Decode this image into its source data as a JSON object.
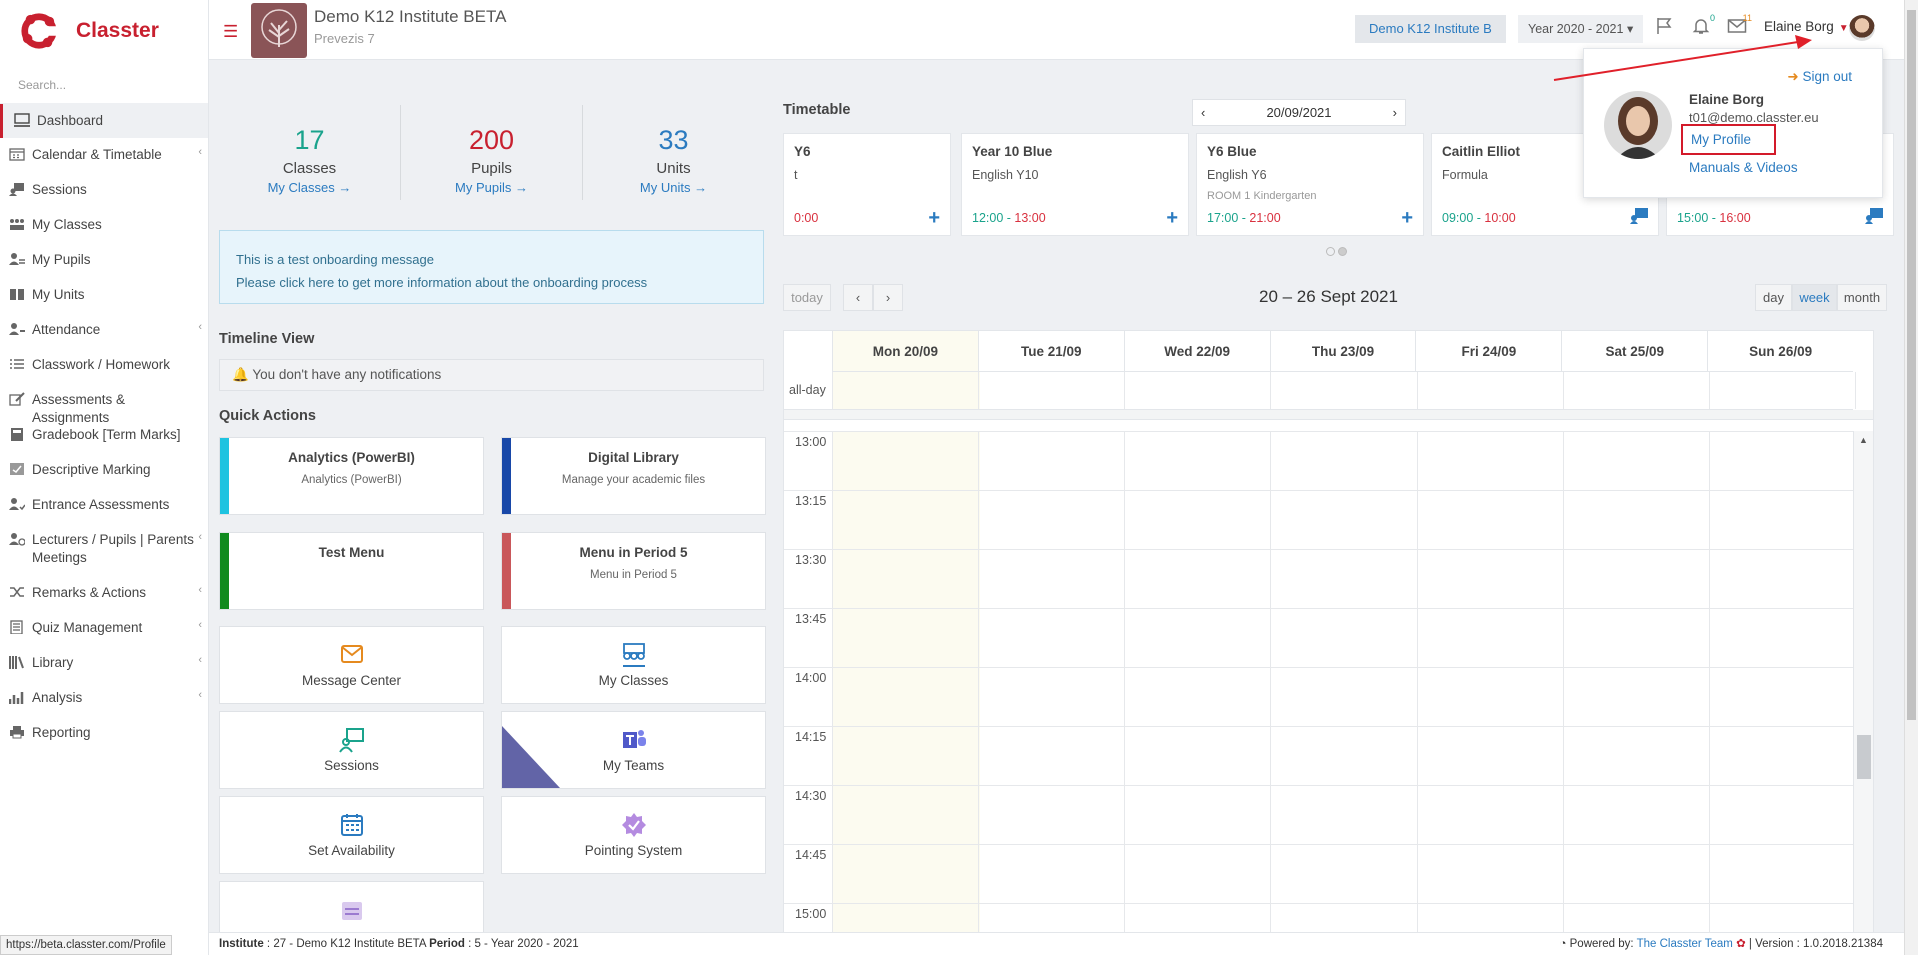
{
  "app": {
    "name": "Classter",
    "search_placeholder": "Search...",
    "colors": {
      "brand": "#c8202f",
      "link": "#2b7bc0"
    }
  },
  "sidebar": {
    "items": [
      {
        "label": "Dashboard",
        "icon": "monitor-icon",
        "active": true
      },
      {
        "label": "Calendar & Timetable",
        "icon": "calendar-icon",
        "chevron": true
      },
      {
        "label": "Sessions",
        "icon": "sessions-icon"
      },
      {
        "label": "My Classes",
        "icon": "classes-icon"
      },
      {
        "label": "My Pupils",
        "icon": "pupils-icon"
      },
      {
        "label": "My Units",
        "icon": "book-icon"
      },
      {
        "label": "Attendance",
        "icon": "attendance-icon",
        "chevron": true
      },
      {
        "label": "Classwork / Homework",
        "icon": "list-icon"
      },
      {
        "label": "Assessments & Assignments",
        "icon": "edit-icon"
      },
      {
        "label": "Gradebook [Term Marks]",
        "icon": "gradebook-icon"
      },
      {
        "label": "Descriptive Marking",
        "icon": "marking-icon"
      },
      {
        "label": "Entrance Assessments",
        "icon": "entrance-icon"
      },
      {
        "label": "Lecturers / Pupils | Parents Meetings",
        "icon": "meetings-icon",
        "chevron": true
      },
      {
        "label": "Remarks & Actions",
        "icon": "shuffle-icon",
        "chevron": true
      },
      {
        "label": "Quiz Management",
        "icon": "quiz-icon",
        "chevron": true
      },
      {
        "label": "Library",
        "icon": "library-icon",
        "chevron": true
      },
      {
        "label": "Analysis",
        "icon": "chart-icon",
        "chevron": true
      },
      {
        "label": "Reporting",
        "icon": "print-icon"
      }
    ]
  },
  "header": {
    "institute_name": "Demo K12 Institute BETA",
    "institute_sub": "Prevezis 7",
    "institute_button": "Demo K12 Institute B",
    "year_select": "Year 2020 - 2021",
    "notifications_count": "0",
    "messages_count": "11",
    "user_name": "Elaine Borg"
  },
  "stats": [
    {
      "value": "17",
      "label": "Classes",
      "link": "My Classes  →",
      "color": "#1aa38c"
    },
    {
      "value": "200",
      "label": "Pupils",
      "link": "My Pupils  →",
      "color": "#c8202f"
    },
    {
      "value": "33",
      "label": "Units",
      "link": "My Units  →",
      "color": "#2b7bc0"
    }
  ],
  "onboarding": {
    "line1": "This is a test onboarding message",
    "line2": "Please click here to get more information about the onboarding process"
  },
  "timeline": {
    "title": "Timeline View",
    "empty": "You don't have any notifications"
  },
  "quick_actions": {
    "title": "Quick Actions",
    "cards": [
      {
        "title": "Analytics (PowerBI)",
        "subtitle": "Analytics (PowerBI)",
        "color": "#1ec3e0"
      },
      {
        "title": "Digital Library",
        "subtitle": "Manage your academic files",
        "color": "#1848a8"
      },
      {
        "title": "Test Menu",
        "subtitle": "",
        "color": "#108a1e"
      },
      {
        "title": "Menu in Period 5",
        "subtitle": "Menu in Period 5",
        "color": "#c9575a"
      }
    ],
    "tiles": [
      {
        "label": "Message Center",
        "icon": "message-icon"
      },
      {
        "label": "My Classes",
        "icon": "classes-icon"
      },
      {
        "label": "Sessions",
        "icon": "sessions-icon"
      },
      {
        "label": "My Teams",
        "icon": "teams-icon"
      },
      {
        "label": "Set Availability",
        "icon": "calendar-icon"
      },
      {
        "label": "Pointing System",
        "icon": "badge-icon"
      }
    ]
  },
  "timetable": {
    "title": "Timetable",
    "date": "20/09/2021",
    "cards": [
      {
        "name": "Y6",
        "course": "t",
        "room": "",
        "start": "",
        "end": "0:00"
      },
      {
        "name": "Year 10 Blue",
        "course": "English Y10",
        "room": "",
        "start": "12:00",
        "end": "13:00"
      },
      {
        "name": "Y6 Blue",
        "course": "English Y6",
        "room": "ROOM 1 Kindergarten",
        "start": "17:00",
        "end": "21:00"
      },
      {
        "name": "Caitlin Elliot",
        "course": "Formula",
        "room": "",
        "start": "09:00",
        "end": "10:00"
      },
      {
        "name": "",
        "course": "",
        "room": "",
        "start": "15:00",
        "end": "16:00"
      }
    ]
  },
  "calendar": {
    "today_btn": "today",
    "range": "20 – 26 Sept 2021",
    "views": [
      "day",
      "week",
      "month"
    ],
    "days": [
      "Mon 20/09",
      "Tue 21/09",
      "Wed 22/09",
      "Thu 23/09",
      "Fri 24/09",
      "Sat 25/09",
      "Sun 26/09"
    ],
    "allday": "all-day",
    "times": [
      "13:00",
      "13:15",
      "13:30",
      "13:45",
      "14:00",
      "14:15",
      "14:30",
      "14:45",
      "15:00"
    ]
  },
  "dropdown": {
    "sign_out": "Sign out",
    "name": "Elaine Borg",
    "email": "t01@demo.classter.eu",
    "my_profile": "My Profile",
    "manuals": "Manuals & Videos"
  },
  "footer": {
    "left_label1": "Institute",
    "left_value1": " : 27 - Demo K12 Institute BETA ",
    "left_label2": "Period",
    "left_value2": " : 5 - Year 2020 - 2021",
    "powered": "Powered by:",
    "team": "The Classter Team",
    "version": "| Version : 1.0.2018.21384"
  },
  "status_url": "https://beta.classter.com/Profile"
}
